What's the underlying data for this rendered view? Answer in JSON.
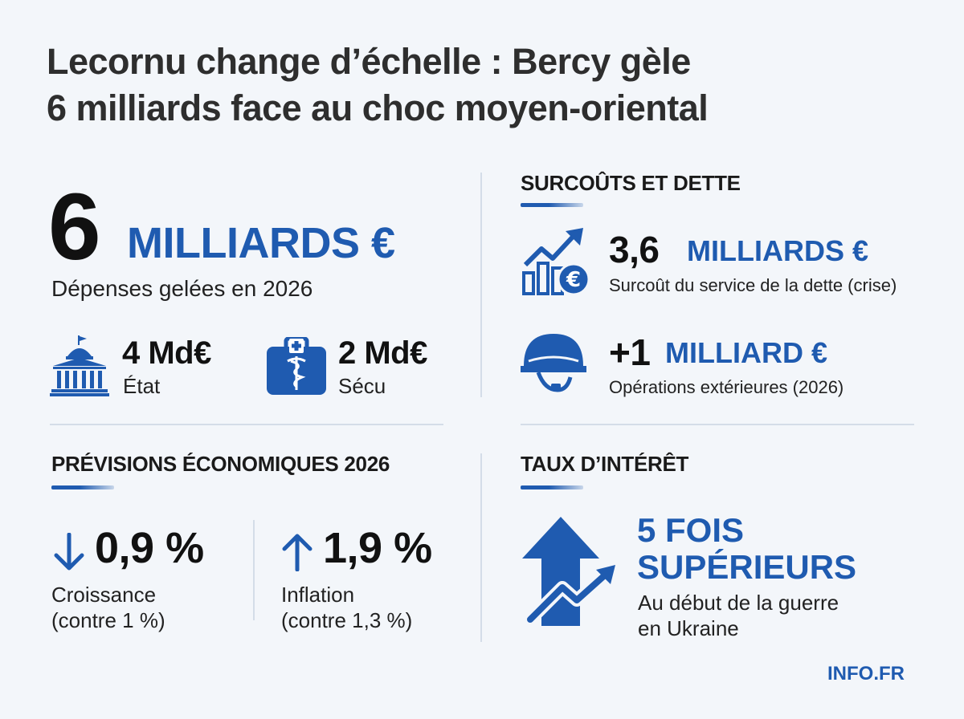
{
  "title": {
    "line1": "Lecornu change d’échelle : Bercy gèle",
    "line2": "6 milliards face au choc moyen-oriental"
  },
  "frozen": {
    "value": "6",
    "unit": "MILLIARDS €",
    "description": "Dépenses gelées en 2026",
    "etat": {
      "value": "4 Md€",
      "label": "État",
      "icon": "government-building-icon"
    },
    "secu": {
      "value": "2 Md€",
      "label": "Sécu",
      "icon": "medical-kit-icon"
    }
  },
  "costs": {
    "heading": "SURCOÛTS ET DETTE",
    "debt": {
      "value": "3,6",
      "unit": "MILLIARDS €",
      "description": "Surcoût du service de la dette (crise)",
      "icon": "rising-chart-euro-icon"
    },
    "opex": {
      "value": "+1",
      "unit": "MILLIARD €",
      "description": "Opérations extérieures (2026)",
      "icon": "military-helmet-icon"
    }
  },
  "forecasts": {
    "heading": "PRÉVISIONS ÉCONOMIQUES 2026",
    "growth": {
      "arrow": "↓",
      "value": "0,9 %",
      "label": "Croissance",
      "note": "(contre 1 %)"
    },
    "inflation": {
      "arrow": "↑",
      "value": "1,9 %",
      "label": "Inflation",
      "note": "(contre 1,3 %)"
    }
  },
  "rates": {
    "heading": "TAUX D’INTÉRÊT",
    "line1": "5 FOIS",
    "line2": "SUPÉRIEURS",
    "desc1": "Au début de la guerre",
    "desc2": "en Ukraine",
    "icon": "up-arrow-trend-icon"
  },
  "brand": "INFO.FR",
  "colors": {
    "accent": "#1f5bb0",
    "background": "#f3f6fa",
    "text": "#1a1a1a"
  }
}
